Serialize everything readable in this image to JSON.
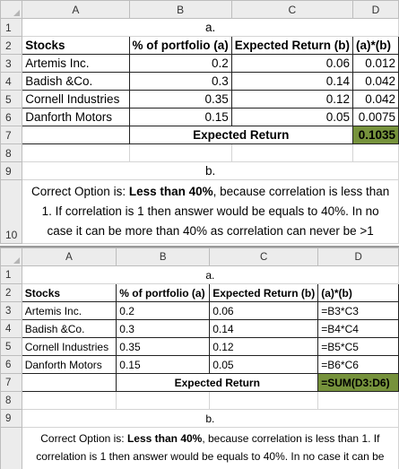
{
  "columns": [
    "A",
    "B",
    "C",
    "D"
  ],
  "row_numbers": [
    "1",
    "2",
    "3",
    "4",
    "5",
    "6",
    "7",
    "8",
    "9",
    "10"
  ],
  "title_a": "a.",
  "title_b": "b.",
  "headers": [
    "Stocks",
    "% of portfolio (a)",
    "Expected Return (b)",
    "(a)*(b)"
  ],
  "rows": [
    {
      "stock": "Artemis Inc.",
      "pct": "0.2",
      "ret": "0.06",
      "prod": "0.012",
      "formula": "=B3*C3"
    },
    {
      "stock": "Badish &Co.",
      "pct": "0.3",
      "ret": "0.14",
      "prod": "0.042",
      "formula": "=B4*C4"
    },
    {
      "stock": "Cornell Industries",
      "pct": "0.35",
      "ret": "0.12",
      "prod": "0.042",
      "formula": "=B5*C5"
    },
    {
      "stock": "Danforth Motors",
      "pct": "0.15",
      "ret": "0.05",
      "prod": "0.0075",
      "formula": "=B6*C6"
    }
  ],
  "expected_return_label": "Expected Return",
  "expected_return_value": "0.1035",
  "expected_return_formula": "=SUM(D3:D6)",
  "note": {
    "prefix": "Correct Option is: ",
    "bold": "Less than 40%",
    "rest": ", because correlation is less than 1. If correlation is 1 then answer would be equals to 40%. In no case it can be more than 40% as correlation can never be >1"
  },
  "colors": {
    "highlight_green": "#76923c",
    "header_gray": "#ececec",
    "grid_line": "#d4d4d4"
  }
}
